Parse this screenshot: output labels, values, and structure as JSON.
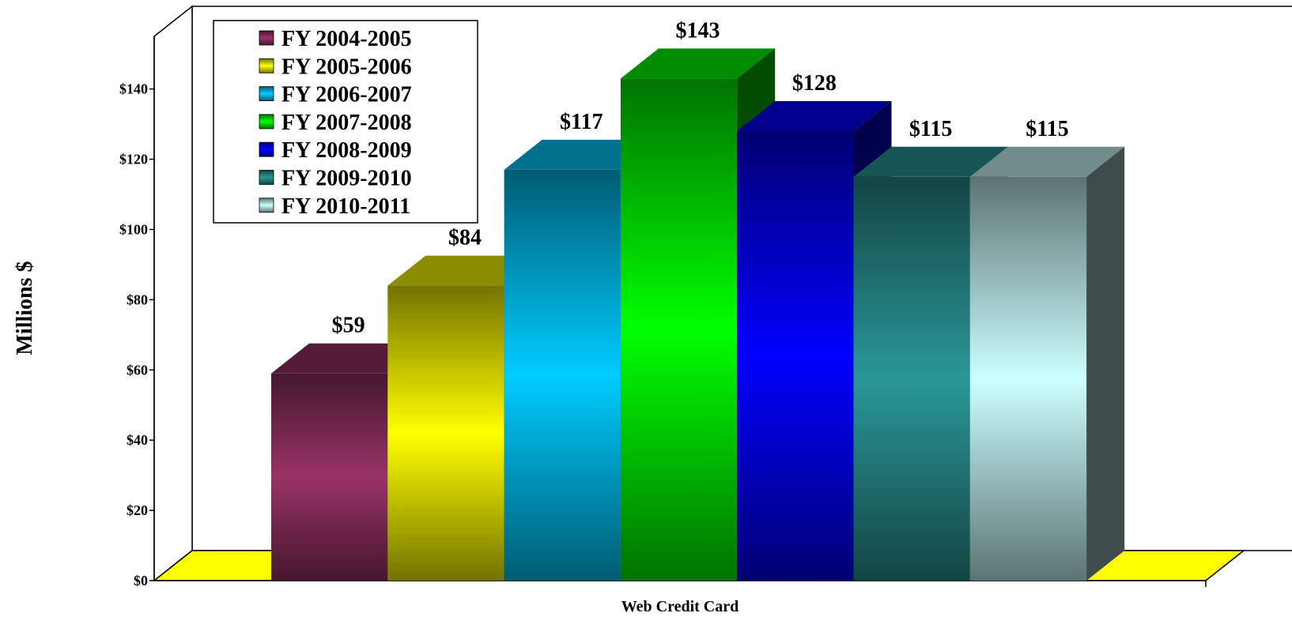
{
  "chart_data": {
    "type": "bar",
    "y_label": "Millions $",
    "x_label": "Web Credit Card",
    "series": [
      {
        "name": "FY 2004-2005",
        "color": "#993366",
        "values": [
          59
        ],
        "value_labels": [
          "$59"
        ]
      },
      {
        "name": "FY 2005-2006",
        "color": "#ffff00",
        "values": [
          84
        ],
        "value_labels": [
          "$84"
        ]
      },
      {
        "name": "FY 2006-2007",
        "color": "#00ccff",
        "values": [
          117
        ],
        "value_labels": [
          "$117"
        ]
      },
      {
        "name": "FY 2007-2008",
        "color": "#00ff00",
        "values": [
          143
        ],
        "value_labels": [
          "$143"
        ]
      },
      {
        "name": "FY 2008-2009",
        "color": "#0000ff",
        "values": [
          128
        ],
        "value_labels": [
          "$128"
        ]
      },
      {
        "name": "FY 2009-2010",
        "color": "#2a9898",
        "values": [
          115
        ],
        "value_labels": [
          "$115"
        ]
      },
      {
        "name": "FY 2010-2011",
        "color": "#ccffff",
        "values": [
          115
        ],
        "value_labels": [
          "$115"
        ]
      }
    ],
    "ylim": [
      0,
      155
    ],
    "yticks": [
      {
        "value": 0,
        "label": "$0"
      },
      {
        "value": 20,
        "label": "$20"
      },
      {
        "value": 40,
        "label": "$40"
      },
      {
        "value": 60,
        "label": "$60"
      },
      {
        "value": 80,
        "label": "$80"
      },
      {
        "value": 100,
        "label": "$100"
      },
      {
        "value": 120,
        "label": "$120"
      },
      {
        "value": 140,
        "label": "$140"
      }
    ],
    "legend": "upper left",
    "floor_color": "#ffff00"
  }
}
